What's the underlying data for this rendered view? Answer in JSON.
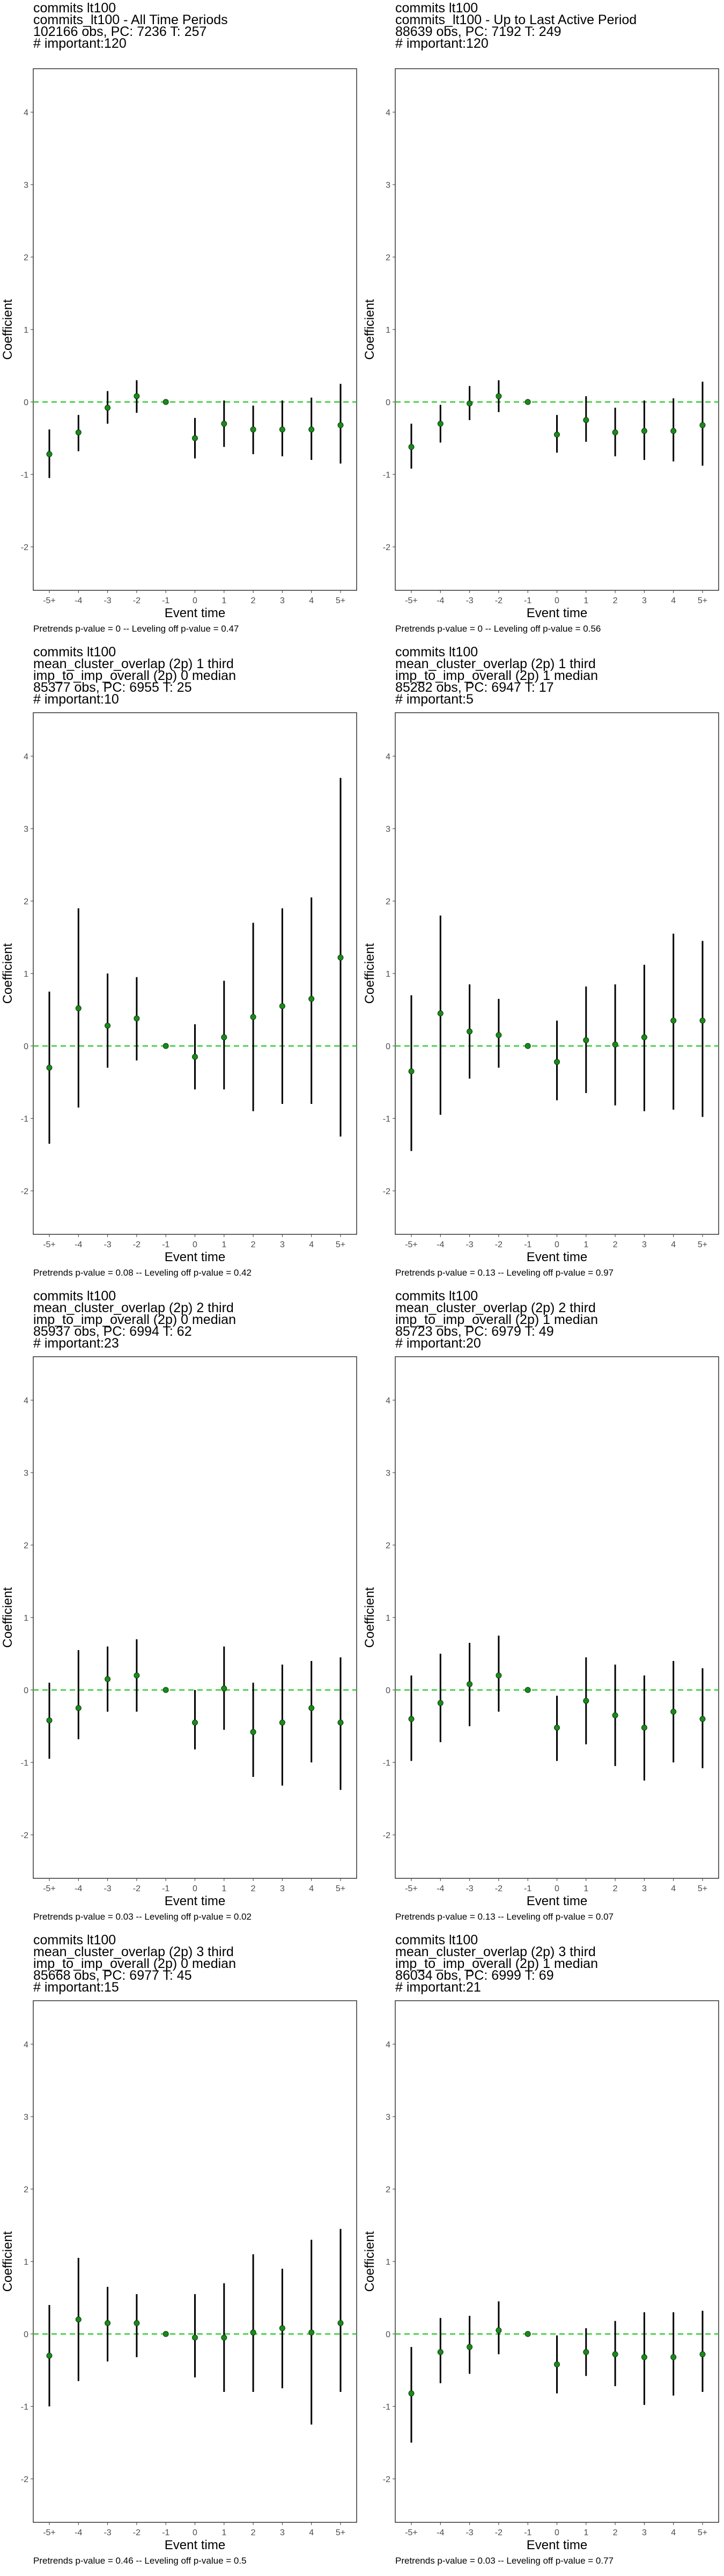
{
  "axis": {
    "xlabel": "Event time",
    "ylabel": "Coefficient",
    "x_ticks": [
      "-5+",
      "-4",
      "-3",
      "-2",
      "-1",
      "0",
      "1",
      "2",
      "3",
      "4",
      "5+"
    ],
    "y_ticks": [
      -2,
      -1,
      0,
      1,
      2,
      3,
      4
    ],
    "ylim": [
      -2.6,
      4.6
    ]
  },
  "colors": {
    "point": "#1a8a1a",
    "zero_line": "#33cc33",
    "bar": "#000000",
    "frame": "#333333"
  },
  "panels": [
    {
      "title_lines": [
        "commits lt100",
        "commits_lt100 - All Time Periods",
        "102166 obs, PC: 7236 T: 257",
        "# important:120"
      ],
      "footnote": "Pretrends p-value = 0 -- Leveling off p-value = 0.47"
    },
    {
      "title_lines": [
        "commits lt100",
        "commits_lt100 - Up to Last Active Period",
        "88639 obs, PC: 7192 T: 249",
        "# important:120"
      ],
      "footnote": "Pretrends p-value = 0 -- Leveling off p-value = 0.56"
    },
    {
      "title_lines": [
        "commits lt100",
        "mean_cluster_overlap (2p) 1 third",
        "imp_to_imp_overall (2p) 0 median",
        "85377 obs, PC: 6955 T: 25",
        "# important:10"
      ],
      "footnote": "Pretrends p-value = 0.08 -- Leveling off p-value = 0.42"
    },
    {
      "title_lines": [
        "commits lt100",
        "mean_cluster_overlap (2p) 1 third",
        "imp_to_imp_overall (2p) 1 median",
        "85282 obs, PC: 6947 T: 17",
        "# important:5"
      ],
      "footnote": "Pretrends p-value = 0.13 -- Leveling off p-value = 0.97"
    },
    {
      "title_lines": [
        "commits lt100",
        "mean_cluster_overlap (2p) 2 third",
        "imp_to_imp_overall (2p) 0 median",
        "85937 obs, PC: 6994 T: 62",
        "# important:23"
      ],
      "footnote": "Pretrends p-value = 0.03 -- Leveling off p-value = 0.02"
    },
    {
      "title_lines": [
        "commits lt100",
        "mean_cluster_overlap (2p) 2 third",
        "imp_to_imp_overall (2p) 1 median",
        "85723 obs, PC: 6979 T: 49",
        "# important:20"
      ],
      "footnote": "Pretrends p-value = 0.13 -- Leveling off p-value = 0.07"
    },
    {
      "title_lines": [
        "commits lt100",
        "mean_cluster_overlap (2p) 3 third",
        "imp_to_imp_overall (2p) 0 median",
        "85668 obs, PC: 6977 T: 45",
        "# important:15"
      ],
      "footnote": "Pretrends p-value = 0.46 -- Leveling off p-value = 0.5"
    },
    {
      "title_lines": [
        "commits lt100",
        "mean_cluster_overlap (2p) 3 third",
        "imp_to_imp_overall (2p) 1 median",
        "86034 obs, PC: 6999 T: 69",
        "# important:21"
      ],
      "footnote": "Pretrends p-value = 0.03 -- Leveling off p-value = 0.77"
    }
  ],
  "chart_data": [
    {
      "type": "errorbar",
      "x": [
        "-5+",
        "-4",
        "-3",
        "-2",
        "-1",
        "0",
        "1",
        "2",
        "3",
        "4",
        "5+"
      ],
      "y": [
        -0.72,
        -0.42,
        -0.08,
        0.08,
        0,
        -0.5,
        -0.3,
        -0.38,
        -0.38,
        -0.38,
        -0.32
      ],
      "ci_low": [
        -1.05,
        -0.68,
        -0.3,
        -0.15,
        0,
        -0.78,
        -0.62,
        -0.72,
        -0.75,
        -0.8,
        -0.85
      ],
      "ci_high": [
        -0.38,
        -0.18,
        0.15,
        0.3,
        0,
        -0.22,
        0.02,
        -0.05,
        0.02,
        0.06,
        0.25
      ],
      "xlabel": "Event time",
      "ylabel": "Coefficient",
      "ylim": [
        -2.6,
        4.6
      ],
      "hline": 0
    },
    {
      "type": "errorbar",
      "x": [
        "-5+",
        "-4",
        "-3",
        "-2",
        "-1",
        "0",
        "1",
        "2",
        "3",
        "4",
        "5+"
      ],
      "y": [
        -0.62,
        -0.3,
        -0.02,
        0.08,
        0,
        -0.45,
        -0.25,
        -0.42,
        -0.4,
        -0.4,
        -0.32
      ],
      "ci_low": [
        -0.92,
        -0.56,
        -0.25,
        -0.14,
        0,
        -0.7,
        -0.55,
        -0.75,
        -0.8,
        -0.82,
        -0.88
      ],
      "ci_high": [
        -0.3,
        -0.04,
        0.22,
        0.3,
        0,
        -0.18,
        0.08,
        -0.08,
        0.02,
        0.05,
        0.28
      ],
      "xlabel": "Event time",
      "ylabel": "Coefficient",
      "ylim": [
        -2.6,
        4.6
      ],
      "hline": 0
    },
    {
      "type": "errorbar",
      "x": [
        "-5+",
        "-4",
        "-3",
        "-2",
        "-1",
        "0",
        "1",
        "2",
        "3",
        "4",
        "5+"
      ],
      "y": [
        -0.3,
        0.52,
        0.28,
        0.38,
        0,
        -0.15,
        0.12,
        0.4,
        0.55,
        0.65,
        1.22
      ],
      "ci_low": [
        -1.35,
        -0.85,
        -0.3,
        -0.2,
        0,
        -0.6,
        -0.6,
        -0.9,
        -0.8,
        -0.8,
        -1.25
      ],
      "ci_high": [
        0.75,
        1.9,
        1.0,
        0.95,
        0,
        0.3,
        0.9,
        1.7,
        1.9,
        2.05,
        3.7
      ],
      "xlabel": "Event time",
      "ylabel": "Coefficient",
      "ylim": [
        -2.6,
        4.6
      ],
      "hline": 0
    },
    {
      "type": "errorbar",
      "x": [
        "-5+",
        "-4",
        "-3",
        "-2",
        "-1",
        "0",
        "1",
        "2",
        "3",
        "4",
        "5+"
      ],
      "y": [
        -0.35,
        0.45,
        0.2,
        0.15,
        0,
        -0.22,
        0.08,
        0.02,
        0.12,
        0.35,
        0.35
      ],
      "ci_low": [
        -1.45,
        -0.95,
        -0.45,
        -0.3,
        0,
        -0.75,
        -0.65,
        -0.82,
        -0.9,
        -0.88,
        -0.98
      ],
      "ci_high": [
        0.7,
        1.8,
        0.85,
        0.65,
        0,
        0.35,
        0.82,
        0.85,
        1.12,
        1.55,
        1.45
      ],
      "xlabel": "Event time",
      "ylabel": "Coefficient",
      "ylim": [
        -2.6,
        4.6
      ],
      "hline": 0
    },
    {
      "type": "errorbar",
      "x": [
        "-5+",
        "-4",
        "-3",
        "-2",
        "-1",
        "0",
        "1",
        "2",
        "3",
        "4",
        "5+"
      ],
      "y": [
        -0.42,
        -0.25,
        0.15,
        0.2,
        0,
        -0.45,
        0.02,
        -0.58,
        -0.45,
        -0.25,
        -0.45
      ],
      "ci_low": [
        -0.95,
        -0.68,
        -0.3,
        -0.3,
        0,
        -0.82,
        -0.55,
        -1.2,
        -1.32,
        -1.0,
        -1.38
      ],
      "ci_high": [
        0.1,
        0.55,
        0.6,
        0.7,
        0,
        0.0,
        0.6,
        0.1,
        0.35,
        0.4,
        0.45
      ],
      "xlabel": "Event time",
      "ylabel": "Coefficient",
      "ylim": [
        -2.6,
        4.6
      ],
      "hline": 0
    },
    {
      "type": "errorbar",
      "x": [
        "-5+",
        "-4",
        "-3",
        "-2",
        "-1",
        "0",
        "1",
        "2",
        "3",
        "4",
        "5+"
      ],
      "y": [
        -0.4,
        -0.18,
        0.08,
        0.2,
        0,
        -0.52,
        -0.15,
        -0.35,
        -0.52,
        -0.3,
        -0.4
      ],
      "ci_low": [
        -0.98,
        -0.72,
        -0.5,
        -0.3,
        0,
        -0.98,
        -0.75,
        -1.05,
        -1.25,
        -1.0,
        -1.08
      ],
      "ci_high": [
        0.2,
        0.5,
        0.65,
        0.75,
        0,
        -0.08,
        0.45,
        0.35,
        0.2,
        0.4,
        0.3
      ],
      "xlabel": "Event time",
      "ylabel": "Coefficient",
      "ylim": [
        -2.6,
        4.6
      ],
      "hline": 0
    },
    {
      "type": "errorbar",
      "x": [
        "-5+",
        "-4",
        "-3",
        "-2",
        "-1",
        "0",
        "1",
        "2",
        "3",
        "4",
        "5+"
      ],
      "y": [
        -0.3,
        0.2,
        0.15,
        0.15,
        0,
        -0.05,
        -0.05,
        0.02,
        0.08,
        0.02,
        0.15
      ],
      "ci_low": [
        -1.0,
        -0.65,
        -0.38,
        -0.32,
        0,
        -0.6,
        -0.8,
        -0.8,
        -0.75,
        -1.25,
        -0.8
      ],
      "ci_high": [
        0.4,
        1.05,
        0.65,
        0.55,
        0,
        0.55,
        0.7,
        1.1,
        0.9,
        1.3,
        1.45
      ],
      "xlabel": "Event time",
      "ylabel": "Coefficient",
      "ylim": [
        -2.6,
        4.6
      ],
      "hline": 0
    },
    {
      "type": "errorbar",
      "x": [
        "-5+",
        "-4",
        "-3",
        "-2",
        "-1",
        "0",
        "1",
        "2",
        "3",
        "4",
        "5+"
      ],
      "y": [
        -0.82,
        -0.25,
        -0.18,
        0.05,
        0,
        -0.42,
        -0.25,
        -0.28,
        -0.32,
        -0.32,
        -0.28
      ],
      "ci_low": [
        -1.5,
        -0.68,
        -0.55,
        -0.28,
        0,
        -0.82,
        -0.58,
        -0.72,
        -0.98,
        -0.85,
        -0.8
      ],
      "ci_high": [
        -0.18,
        0.22,
        0.25,
        0.45,
        0,
        -0.02,
        0.08,
        0.18,
        0.3,
        0.3,
        0.32
      ],
      "xlabel": "Event time",
      "ylabel": "Coefficient",
      "ylim": [
        -2.6,
        4.6
      ],
      "hline": 0
    }
  ]
}
